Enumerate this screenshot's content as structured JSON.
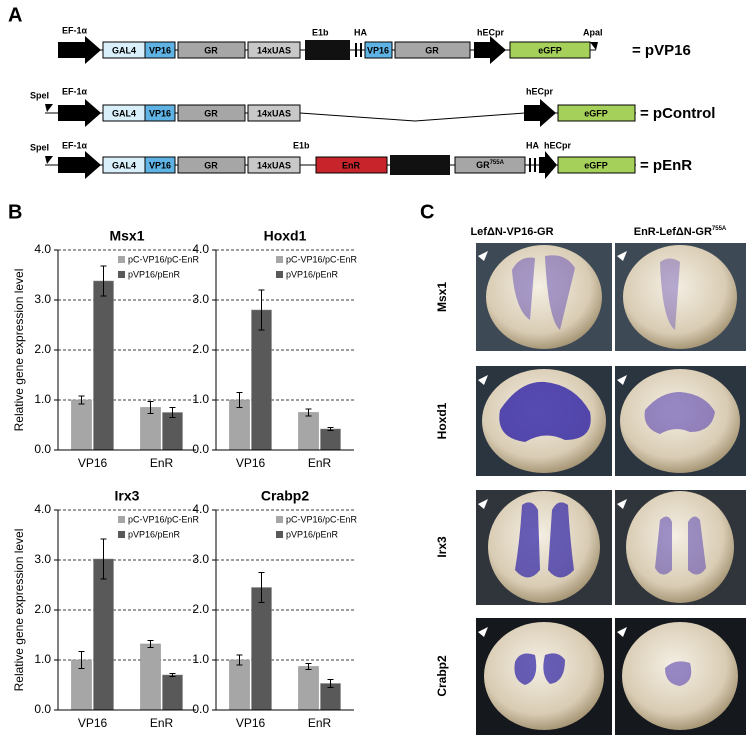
{
  "panels": {
    "a": "A",
    "b": "B",
    "c": "C"
  },
  "constructs": [
    {
      "name": "= pVP16",
      "labels": {
        "promoter": "EF-1α",
        "e1b": "E1b",
        "ha": "HA",
        "hecpr": "hECpr",
        "site": "ApaI"
      },
      "boxes": [
        "GAL4",
        "VP16",
        "GR",
        "14xUAS",
        "VP16",
        "GR",
        "eGFP"
      ]
    },
    {
      "name": "= pControl",
      "labels": {
        "site": "SpeI",
        "promoter": "EF-1α",
        "hecpr": "hECpr"
      },
      "boxes": [
        "GAL4",
        "VP16",
        "GR",
        "14xUAS",
        "eGFP"
      ]
    },
    {
      "name": "= pEnR",
      "labels": {
        "site": "SpeI",
        "promoter": "EF-1α",
        "e1b": "E1b",
        "ha": "HA",
        "hecpr": "hECpr"
      },
      "boxes": [
        "GAL4",
        "VP16",
        "GR",
        "14xUAS",
        "EnR",
        "eGFP"
      ],
      "gr": {
        "text": "GR",
        "superscript": "755A"
      }
    }
  ],
  "chart_data": [
    {
      "type": "bar",
      "title": "Msx1",
      "y_label": "Relative gene expression level",
      "categories": [
        "VP16",
        "EnR"
      ],
      "series": [
        {
          "name": "pC-VP16/pC-EnR",
          "color": "#a6a6a6",
          "values": [
            1.0,
            0.85
          ],
          "errors": [
            0.08,
            0.12
          ]
        },
        {
          "name": "pVP16/pEnR",
          "color": "#595959",
          "values": [
            3.38,
            0.75
          ],
          "errors": [
            0.3,
            0.1
          ]
        }
      ],
      "ylim": [
        0,
        4
      ],
      "yticks": [
        {
          "value": 0,
          "label": "0.0"
        },
        {
          "value": 1,
          "label": "1.0"
        },
        {
          "value": 2,
          "label": "2.0"
        },
        {
          "value": 3,
          "label": "3.0"
        },
        {
          "value": 4,
          "label": "4.0"
        }
      ],
      "grid": true,
      "legend": "upper right"
    },
    {
      "type": "bar",
      "title": "Hoxd1",
      "categories": [
        "VP16",
        "EnR"
      ],
      "series": [
        {
          "name": "pC-VP16/pC-EnR",
          "color": "#a6a6a6",
          "values": [
            1.0,
            0.75
          ],
          "errors": [
            0.15,
            0.07
          ]
        },
        {
          "name": "pVP16/pEnR",
          "color": "#595959",
          "values": [
            2.8,
            0.42
          ],
          "errors": [
            0.4,
            0.03
          ]
        }
      ],
      "ylim": [
        0,
        4
      ],
      "yticks": [
        {
          "value": 0,
          "label": "0.0"
        },
        {
          "value": 1,
          "label": "1.0"
        },
        {
          "value": 2,
          "label": "2.0"
        },
        {
          "value": 3,
          "label": "3.0"
        },
        {
          "value": 4,
          "label": "4.0"
        }
      ],
      "grid": true,
      "legend": "upper right"
    },
    {
      "type": "bar",
      "title": "Irx3",
      "y_label": "Relative gene expression level",
      "categories": [
        "VP16",
        "EnR"
      ],
      "series": [
        {
          "name": "pC-VP16/pC-EnR",
          "color": "#a6a6a6",
          "values": [
            1.0,
            1.32
          ],
          "errors": [
            0.17,
            0.07
          ]
        },
        {
          "name": "pVP16/pEnR",
          "color": "#595959",
          "values": [
            3.02,
            0.7
          ],
          "errors": [
            0.4,
            0.03
          ]
        }
      ],
      "ylim": [
        0,
        4
      ],
      "yticks": [
        {
          "value": 0,
          "label": "0.0"
        },
        {
          "value": 1,
          "label": "1.0"
        },
        {
          "value": 2,
          "label": "2.0"
        },
        {
          "value": 3,
          "label": "3.0"
        },
        {
          "value": 4,
          "label": "4.0"
        }
      ],
      "grid": true,
      "legend": "upper right"
    },
    {
      "type": "bar",
      "title": "Crabp2",
      "categories": [
        "VP16",
        "EnR"
      ],
      "series": [
        {
          "name": "pC-VP16/pC-EnR",
          "color": "#a6a6a6",
          "values": [
            1.0,
            0.87
          ],
          "errors": [
            0.1,
            0.06
          ]
        },
        {
          "name": "pVP16/pEnR",
          "color": "#595959",
          "values": [
            2.45,
            0.53
          ],
          "errors": [
            0.3,
            0.08
          ]
        }
      ],
      "ylim": [
        0,
        4
      ],
      "yticks": [
        {
          "value": 0,
          "label": "0.0"
        },
        {
          "value": 1,
          "label": "1.0"
        },
        {
          "value": 2,
          "label": "2.0"
        },
        {
          "value": 3,
          "label": "3.0"
        },
        {
          "value": 4,
          "label": "4.0"
        }
      ],
      "grid": true,
      "legend": "upper right"
    }
  ],
  "photos": {
    "columns": [
      "LefΔN-VP16-GR",
      {
        "text": "EnR-LefΔN-GR",
        "superscript": "755A"
      }
    ],
    "rows": [
      "Msx1",
      "Hoxd1",
      "Irx3",
      "Crabp2"
    ]
  }
}
